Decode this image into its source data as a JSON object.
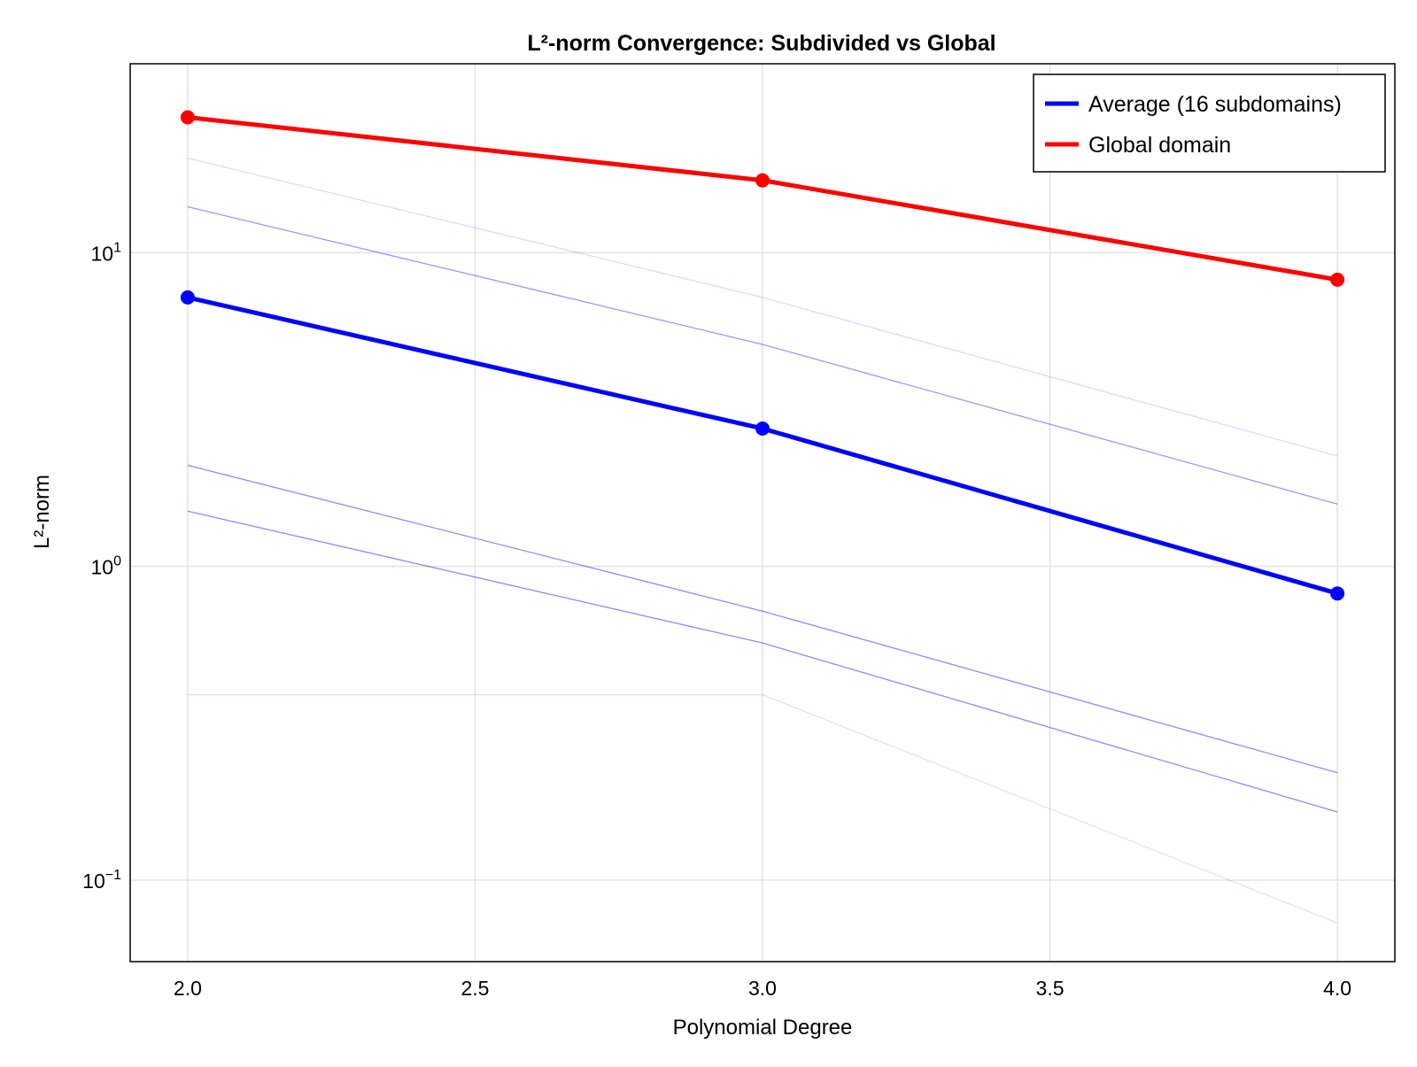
{
  "chart_data": {
    "type": "line",
    "title": "L²-norm Convergence: Subdivided vs Global",
    "xlabel": "Polynomial Degree",
    "ylabel": "L²-norm",
    "x": [
      2.0,
      3.0,
      4.0
    ],
    "xlim": [
      1.9,
      4.1
    ],
    "ylim": [
      0.055,
      40
    ],
    "yscale": "log",
    "grid": true,
    "legend_position": "top-right",
    "x_ticks": [
      {
        "value": 2.0,
        "label": "2.0"
      },
      {
        "value": 2.5,
        "label": "2.5"
      },
      {
        "value": 3.0,
        "label": "3.0"
      },
      {
        "value": 3.5,
        "label": "3.5"
      },
      {
        "value": 4.0,
        "label": "4.0"
      }
    ],
    "y_ticks": [
      {
        "value": 0.1,
        "base": "10",
        "exp": "−1"
      },
      {
        "value": 1,
        "base": "10",
        "exp": "0"
      },
      {
        "value": 10,
        "base": "10",
        "exp": "1"
      }
    ],
    "series": [
      {
        "name": "Average (16 subdomains)",
        "values": [
          7.2,
          2.75,
          0.82
        ],
        "color": "#0000ff",
        "style": "bold",
        "markers": true
      },
      {
        "name": "Global domain",
        "values": [
          27.0,
          17.0,
          8.2
        ],
        "color": "#ff0000",
        "style": "bold",
        "markers": true
      }
    ],
    "background_series": [
      {
        "values": [
          20.0,
          7.2,
          2.25
        ],
        "color": "#0000ff",
        "opacity": 0.15
      },
      {
        "values": [
          14.0,
          5.1,
          1.58
        ],
        "color": "#0000ff",
        "opacity": 0.4
      },
      {
        "values": [
          2.1,
          0.72,
          0.22
        ],
        "color": "#0000ff",
        "opacity": 0.45
      },
      {
        "values": [
          1.5,
          0.57,
          0.165
        ],
        "color": "#0000ff",
        "opacity": 0.45
      },
      {
        "values": [
          0.39,
          0.39,
          0.073
        ],
        "color": "#0000ff",
        "opacity": 0.12
      }
    ]
  }
}
